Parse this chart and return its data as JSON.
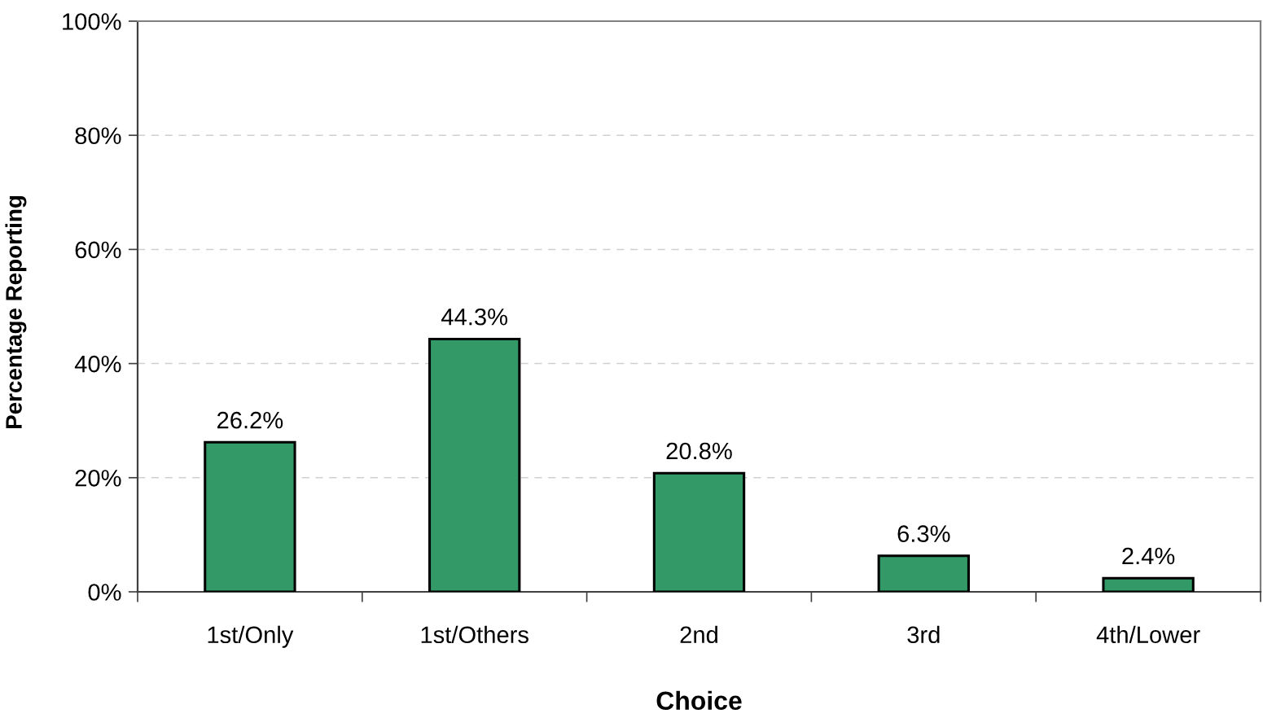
{
  "chart_data": {
    "type": "bar",
    "xlabel": "Choice",
    "ylabel": "Percentage Reporting",
    "categories": [
      "1st/Only",
      "1st/Others",
      "2nd",
      "3rd",
      "4th/Lower"
    ],
    "values": [
      26.2,
      44.3,
      20.8,
      6.3,
      2.4
    ],
    "value_labels": [
      "26.2%",
      "44.3%",
      "20.8%",
      "6.3%",
      "2.4%"
    ],
    "color": "#339966",
    "ylim": [
      0,
      100
    ],
    "yticks": [
      {
        "value": 0,
        "label": "0%"
      },
      {
        "value": 20,
        "label": "20%"
      },
      {
        "value": 40,
        "label": "40%"
      },
      {
        "value": 60,
        "label": "60%"
      },
      {
        "value": 80,
        "label": "80%"
      },
      {
        "value": 100,
        "label": "100%"
      }
    ],
    "grid": "y",
    "legend": false
  }
}
